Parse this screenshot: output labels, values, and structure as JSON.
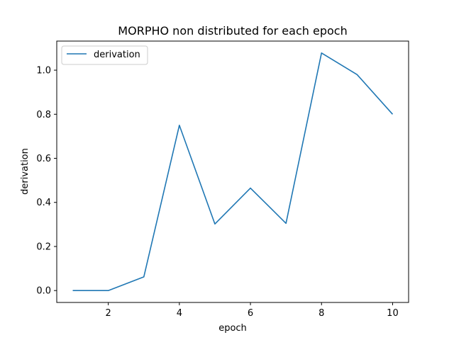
{
  "chart_data": {
    "type": "line",
    "title": "MORPHO non distributed for each epoch",
    "xlabel": "epoch",
    "ylabel": "derivation",
    "xlim": [
      0.55,
      10.45
    ],
    "ylim": [
      -0.054,
      1.132
    ],
    "xticks": [
      2,
      4,
      6,
      8,
      10
    ],
    "yticks": [
      0.0,
      0.2,
      0.4,
      0.6,
      0.8,
      1.0
    ],
    "xtick_labels": [
      "2",
      "4",
      "6",
      "8",
      "10"
    ],
    "ytick_labels": [
      "0.0",
      "0.2",
      "0.4",
      "0.6",
      "0.8",
      "1.0"
    ],
    "grid": false,
    "legend_position": "top-left",
    "series": [
      {
        "name": "derivation",
        "color": "#1f77b4",
        "x": [
          1,
          2,
          3,
          4,
          5,
          6,
          7,
          8,
          9,
          10
        ],
        "y": [
          0.0,
          0.0,
          0.062,
          0.75,
          0.302,
          0.465,
          0.305,
          1.078,
          0.98,
          0.8
        ]
      }
    ]
  }
}
